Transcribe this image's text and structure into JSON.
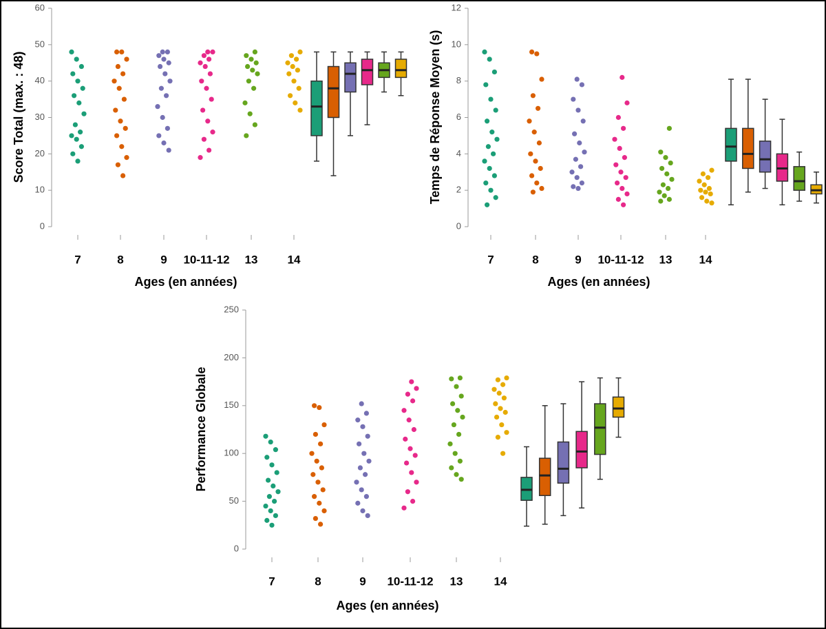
{
  "chart_data": [
    {
      "type": "strip",
      "ylabel": "Score Total (max. : 48)",
      "xlabel": "Ages (en années)",
      "categories": [
        "7",
        "8",
        "9",
        "10-11-12",
        "13",
        "14"
      ],
      "ylim": [
        0,
        60
      ],
      "yticks": [
        0,
        10,
        20,
        30,
        40,
        50,
        60
      ],
      "series": [
        {
          "color": "#1b9e77",
          "values": [
            48,
            46,
            44,
            42,
            40,
            38,
            36,
            34,
            31,
            28,
            26,
            25,
            24,
            22,
            20,
            18
          ],
          "box": {
            "whislo": 18,
            "q1": 25,
            "med": 33,
            "q3": 40,
            "whishi": 48
          }
        },
        {
          "color": "#d95f02",
          "values": [
            48,
            48,
            46,
            44,
            42,
            40,
            38,
            35,
            32,
            29,
            27,
            25,
            22,
            19,
            17,
            14
          ],
          "box": {
            "whislo": 14,
            "q1": 30,
            "med": 38,
            "q3": 44,
            "whishi": 48
          }
        },
        {
          "color": "#7570b3",
          "values": [
            48,
            48,
            47,
            46,
            45,
            44,
            42,
            40,
            38,
            36,
            33,
            30,
            27,
            25,
            23,
            21
          ],
          "box": {
            "whislo": 25,
            "q1": 37,
            "med": 42,
            "q3": 45,
            "whishi": 48
          }
        },
        {
          "color": "#e7298a",
          "values": [
            48,
            48,
            47,
            46,
            45,
            44,
            42,
            40,
            38,
            35,
            32,
            29,
            26,
            24,
            21,
            19
          ],
          "box": {
            "whislo": 28,
            "q1": 39,
            "med": 43,
            "q3": 46,
            "whishi": 48
          }
        },
        {
          "color": "#66a61e",
          "values": [
            48,
            47,
            46,
            45,
            44,
            43,
            42,
            40,
            38,
            34,
            31,
            28,
            25
          ],
          "box": {
            "whislo": 37,
            "q1": 41,
            "med": 43,
            "q3": 45,
            "whishi": 48
          }
        },
        {
          "color": "#e6ab02",
          "values": [
            48,
            47,
            46,
            45,
            44,
            43,
            42,
            40,
            38,
            36,
            34,
            32
          ],
          "box": {
            "whislo": 36,
            "q1": 41,
            "med": 43,
            "q3": 46,
            "whishi": 48
          }
        }
      ]
    },
    {
      "type": "strip",
      "ylabel": "Temps de Réponse Moyen (s)",
      "xlabel": "Ages (en années)",
      "categories": [
        "7",
        "8",
        "9",
        "10-11-12",
        "13",
        "14"
      ],
      "ylim": [
        0,
        12
      ],
      "yticks": [
        0,
        2,
        4,
        6,
        8,
        10,
        12
      ],
      "series": [
        {
          "color": "#1b9e77",
          "values": [
            9.6,
            9.2,
            8.5,
            7.8,
            7,
            6.4,
            5.8,
            5.2,
            4.8,
            4.4,
            4,
            3.6,
            3.2,
            2.8,
            2.4,
            2,
            1.6,
            1.2
          ],
          "box": {
            "whislo": 1.2,
            "q1": 3.6,
            "med": 4.4,
            "q3": 5.4,
            "whishi": 8.1
          }
        },
        {
          "color": "#d95f02",
          "values": [
            9.6,
            9.5,
            8.1,
            7.2,
            6.5,
            5.8,
            5.2,
            4.6,
            4,
            3.6,
            3.2,
            2.8,
            2.4,
            2.1,
            1.9
          ],
          "box": {
            "whislo": 1.9,
            "q1": 3.2,
            "med": 4.0,
            "q3": 5.4,
            "whishi": 8.1
          }
        },
        {
          "color": "#7570b3",
          "values": [
            8.1,
            7.8,
            7,
            6.4,
            5.8,
            5.1,
            4.6,
            4.1,
            3.7,
            3.3,
            3,
            2.7,
            2.4,
            2.2,
            2.1
          ],
          "box": {
            "whislo": 2.1,
            "q1": 3.0,
            "med": 3.7,
            "q3": 4.7,
            "whishi": 7.0
          }
        },
        {
          "color": "#e7298a",
          "values": [
            8.2,
            6.8,
            6,
            5.4,
            4.8,
            4.3,
            3.8,
            3.4,
            3,
            2.7,
            2.4,
            2.1,
            1.8,
            1.5,
            1.2
          ],
          "box": {
            "whislo": 1.2,
            "q1": 2.5,
            "med": 3.2,
            "q3": 4.0,
            "whishi": 5.9
          }
        },
        {
          "color": "#66a61e",
          "values": [
            5.4,
            4.1,
            3.8,
            3.5,
            3.2,
            2.9,
            2.6,
            2.3,
            2.1,
            1.9,
            1.7,
            1.5,
            1.4
          ],
          "box": {
            "whislo": 1.4,
            "q1": 2.0,
            "med": 2.5,
            "q3": 3.3,
            "whishi": 4.1
          }
        },
        {
          "color": "#e6ab02",
          "values": [
            3.1,
            2.9,
            2.7,
            2.5,
            2.3,
            2.1,
            2,
            1.9,
            1.8,
            1.6,
            1.4,
            1.3
          ],
          "box": {
            "whislo": 1.3,
            "q1": 1.8,
            "med": 2.0,
            "q3": 2.3,
            "whishi": 3.0
          }
        }
      ]
    },
    {
      "type": "strip",
      "ylabel": "Performance Globale",
      "xlabel": "Ages (en années)",
      "categories": [
        "7",
        "8",
        "9",
        "10-11-12",
        "13",
        "14"
      ],
      "ylim": [
        0,
        250
      ],
      "yticks": [
        0,
        50,
        100,
        150,
        200,
        250
      ],
      "series": [
        {
          "color": "#1b9e77",
          "values": [
            118,
            112,
            104,
            96,
            88,
            80,
            72,
            66,
            60,
            55,
            50,
            45,
            40,
            35,
            30,
            25
          ],
          "box": {
            "whislo": 24,
            "q1": 51,
            "med": 62,
            "q3": 75,
            "whishi": 107
          }
        },
        {
          "color": "#d95f02",
          "values": [
            150,
            148,
            130,
            120,
            110,
            100,
            92,
            85,
            78,
            70,
            62,
            55,
            48,
            40,
            32,
            26
          ],
          "box": {
            "whislo": 26,
            "q1": 56,
            "med": 77,
            "q3": 95,
            "whishi": 150
          }
        },
        {
          "color": "#7570b3",
          "values": [
            152,
            142,
            135,
            128,
            118,
            110,
            100,
            92,
            85,
            78,
            70,
            62,
            55,
            48,
            40,
            35
          ],
          "box": {
            "whislo": 35,
            "q1": 69,
            "med": 84,
            "q3": 112,
            "whishi": 152
          }
        },
        {
          "color": "#e7298a",
          "values": [
            175,
            168,
            162,
            155,
            145,
            135,
            125,
            115,
            105,
            98,
            90,
            80,
            70,
            60,
            50,
            43
          ],
          "box": {
            "whislo": 43,
            "q1": 85,
            "med": 102,
            "q3": 123,
            "whishi": 175
          }
        },
        {
          "color": "#66a61e",
          "values": [
            179,
            178,
            170,
            160,
            152,
            145,
            138,
            130,
            120,
            110,
            100,
            92,
            85,
            78,
            73
          ],
          "box": {
            "whislo": 73,
            "q1": 99,
            "med": 127,
            "q3": 152,
            "whishi": 179
          }
        },
        {
          "color": "#e6ab02",
          "values": [
            179,
            177,
            172,
            167,
            163,
            158,
            152,
            147,
            143,
            138,
            130,
            122,
            117,
            100
          ],
          "box": {
            "whislo": 117,
            "q1": 138,
            "med": 147,
            "q3": 159,
            "whishi": 179
          }
        }
      ]
    }
  ]
}
